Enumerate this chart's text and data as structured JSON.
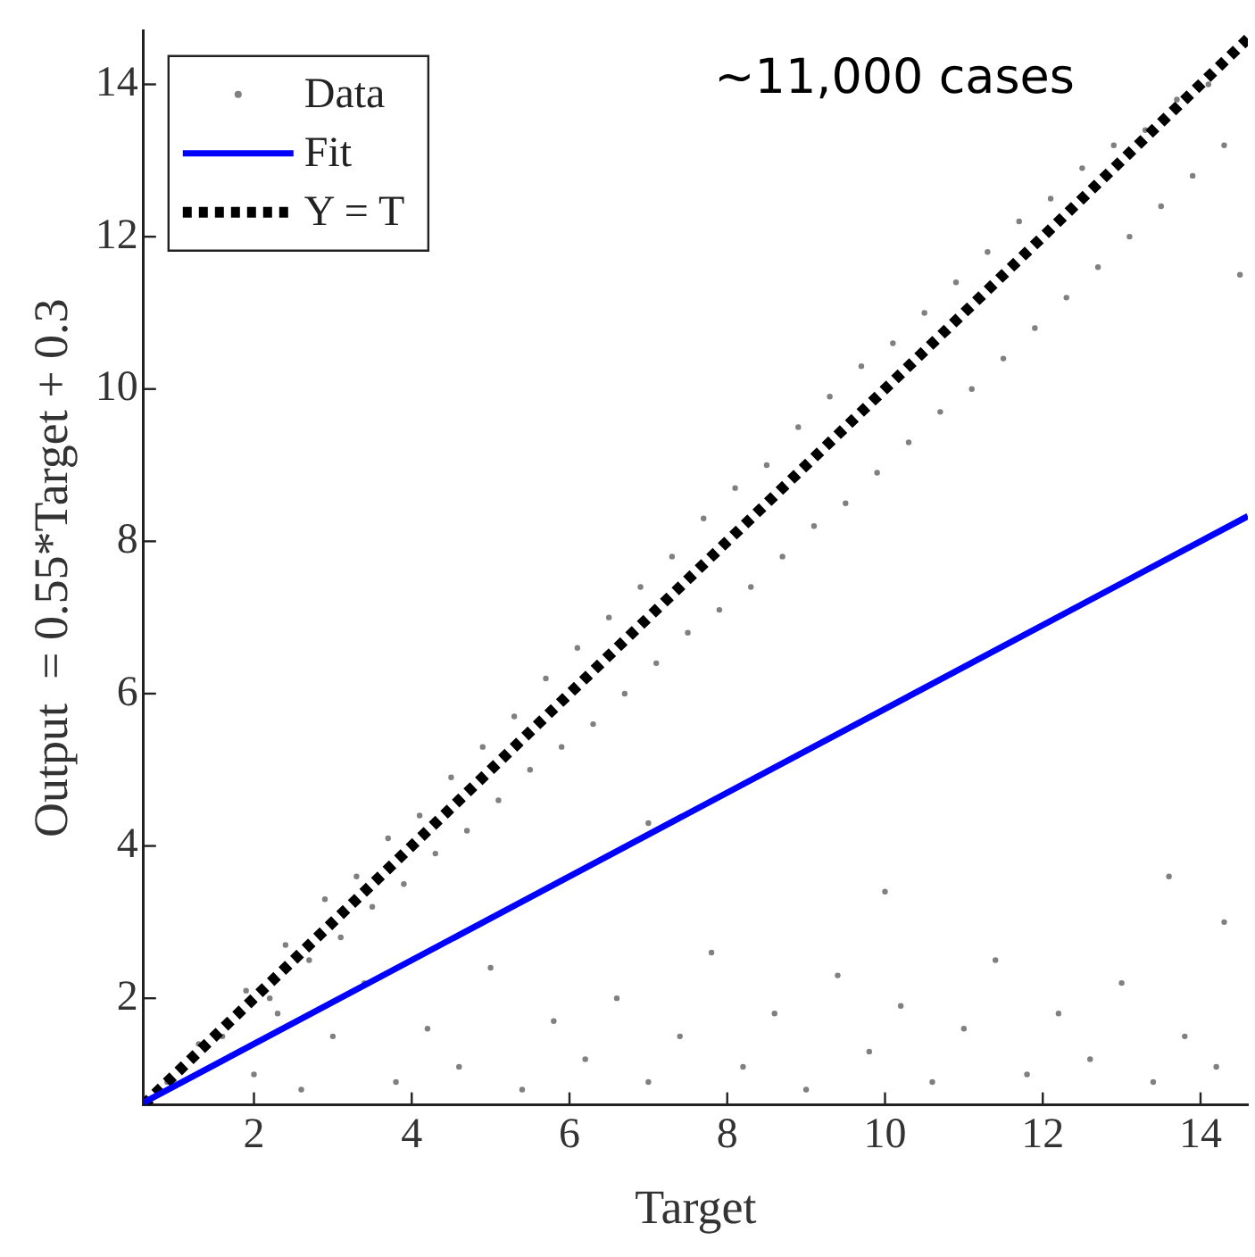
{
  "chart_data": {
    "type": "scatter",
    "xlabel": "Target",
    "ylabel": "Output  = 0.55*Target + 0.3",
    "xlim": [
      0.6,
      14.6
    ],
    "ylim": [
      0.6,
      14.7
    ],
    "xticks": [
      2,
      4,
      6,
      8,
      10,
      12,
      14
    ],
    "yticks": [
      2,
      4,
      6,
      8,
      10,
      12,
      14
    ],
    "grid": false,
    "legend": "top left",
    "annotations": [
      "~11,000 cases"
    ],
    "series": [
      {
        "name": "Data",
        "type": "scatter",
        "color": "#808080",
        "marker": "circle",
        "x": [
          0.9,
          1.3,
          1.6,
          1.9,
          2.2,
          2.4,
          2.7,
          2.9,
          3.1,
          3.3,
          3.5,
          3.7,
          3.9,
          4.1,
          4.3,
          4.5,
          4.7,
          4.9,
          5.1,
          5.3,
          5.5,
          5.7,
          5.9,
          6.1,
          6.3,
          6.5,
          6.7,
          6.9,
          7.1,
          7.3,
          7.5,
          7.7,
          7.9,
          8.1,
          8.3,
          8.5,
          8.7,
          8.9,
          9.1,
          9.3,
          9.5,
          9.7,
          9.9,
          10.1,
          10.3,
          10.5,
          10.7,
          10.9,
          11.1,
          11.3,
          11.5,
          11.7,
          11.9,
          12.1,
          12.3,
          12.5,
          12.7,
          12.9,
          13.1,
          13.3,
          13.5,
          13.7,
          13.9,
          14.1,
          14.3,
          14.5,
          2.0,
          2.3,
          2.6,
          3.0,
          3.4,
          3.8,
          4.2,
          4.6,
          5.0,
          5.4,
          5.8,
          6.2,
          6.6,
          7.0,
          7.0,
          7.4,
          7.8,
          8.2,
          8.6,
          9.0,
          9.4,
          9.8,
          10.0,
          10.2,
          10.6,
          11.0,
          11.4,
          11.8,
          12.2,
          12.6,
          13.0,
          13.4,
          13.6,
          13.8,
          14.2,
          14.3
        ],
        "values": [
          0.9,
          1.4,
          1.5,
          2.1,
          2.0,
          2.7,
          2.5,
          3.3,
          2.8,
          3.6,
          3.2,
          4.1,
          3.5,
          4.4,
          3.9,
          4.9,
          4.2,
          5.3,
          4.6,
          5.7,
          5.0,
          6.2,
          5.3,
          6.6,
          5.6,
          7.0,
          6.0,
          7.4,
          6.4,
          7.8,
          6.8,
          8.3,
          7.1,
          8.7,
          7.4,
          9.0,
          7.8,
          9.5,
          8.2,
          9.9,
          8.5,
          10.3,
          8.9,
          10.6,
          9.3,
          11.0,
          9.7,
          11.4,
          10.0,
          11.8,
          10.4,
          12.2,
          10.8,
          12.5,
          11.2,
          12.9,
          11.6,
          13.2,
          12.0,
          13.4,
          12.4,
          13.8,
          12.8,
          14.0,
          13.2,
          11.5,
          1.0,
          1.8,
          0.8,
          1.5,
          2.2,
          0.9,
          1.6,
          1.1,
          2.4,
          0.8,
          1.7,
          1.2,
          2.0,
          0.9,
          4.3,
          1.5,
          2.6,
          1.1,
          1.8,
          0.8,
          2.3,
          1.3,
          3.4,
          1.9,
          0.9,
          1.6,
          2.5,
          1.0,
          1.8,
          1.2,
          2.2,
          0.9,
          3.6,
          1.5,
          1.1,
          3.0
        ]
      },
      {
        "name": "Fit",
        "type": "line",
        "color": "#0000ff",
        "marker": "none",
        "line_style": "solid",
        "x": [
          0.6,
          14.6
        ],
        "values": [
          0.63,
          8.33
        ]
      },
      {
        "name": "Y = T",
        "type": "line",
        "color": "#000000",
        "marker": "none",
        "line_style": "dotted",
        "x": [
          0.6,
          14.6
        ],
        "values": [
          0.6,
          14.6
        ]
      }
    ]
  }
}
